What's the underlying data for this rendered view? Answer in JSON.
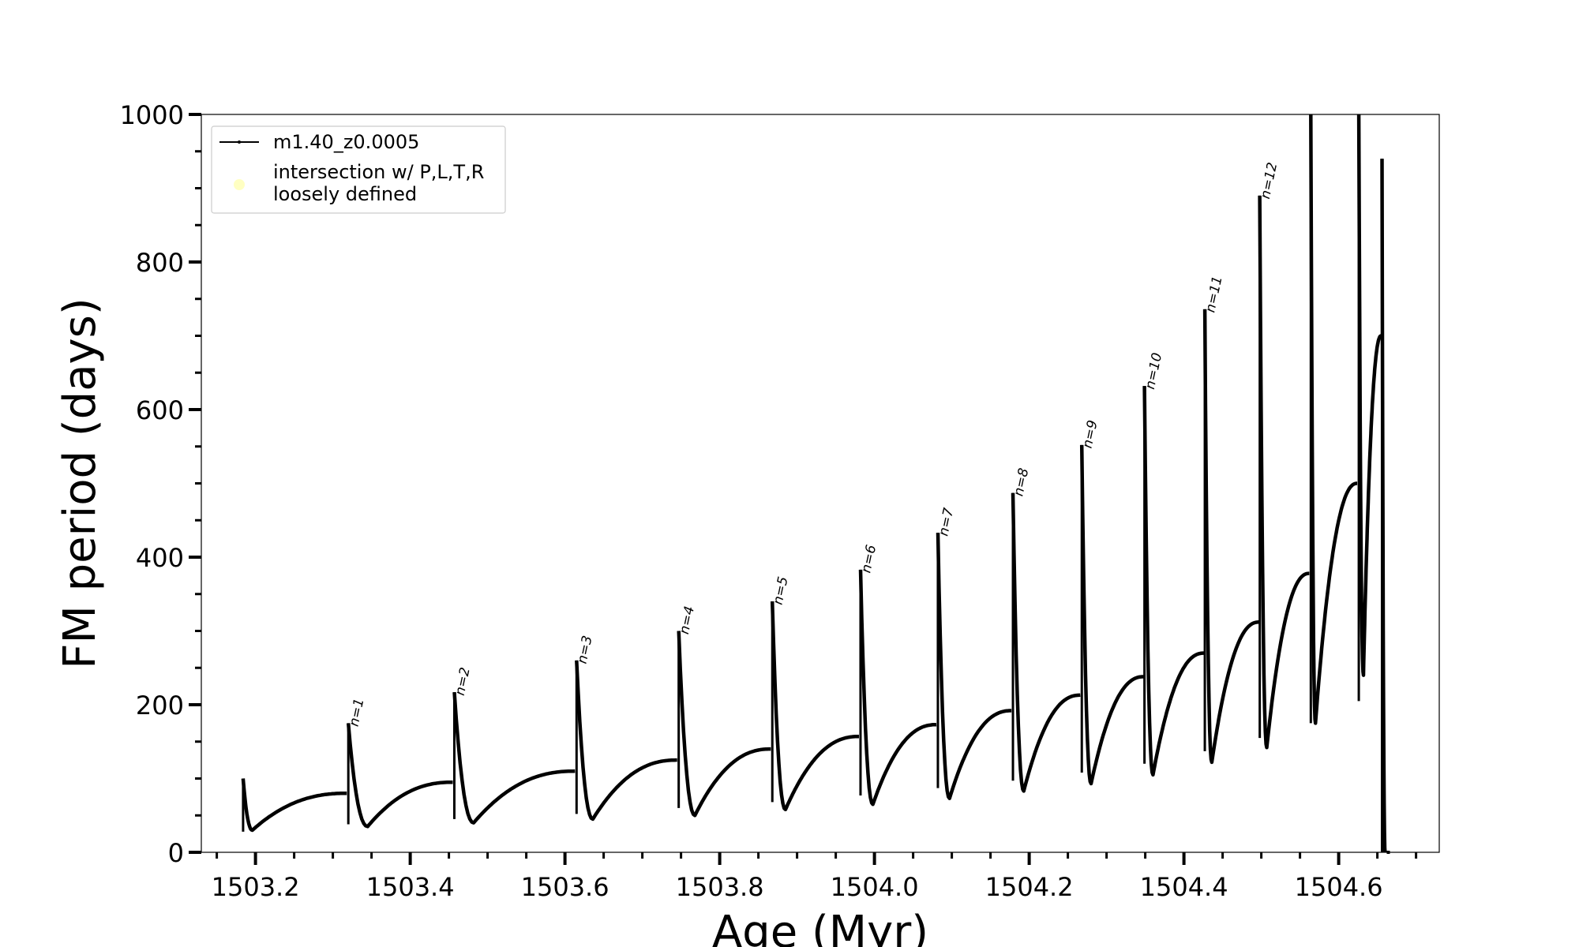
{
  "chart_data": {
    "type": "line",
    "xlabel": "Age (Myr)",
    "ylabel": "FM period (days)",
    "xlim": [
      1503.13,
      1504.73
    ],
    "ylim": [
      0,
      1000
    ],
    "x_ticks": [
      1503.2,
      1503.4,
      1503.6,
      1503.8,
      1504.0,
      1504.2,
      1504.4,
      1504.6
    ],
    "x_tick_labels": [
      "1503.2",
      "1503.4",
      "1503.6",
      "1503.8",
      "1504.0",
      "1504.2",
      "1504.4",
      "1504.6"
    ],
    "y_ticks": [
      0,
      200,
      400,
      600,
      800,
      1000
    ],
    "y_tick_labels": [
      "0",
      "200",
      "400",
      "600",
      "800",
      "1000"
    ],
    "grid": false,
    "legend_position": "top-left",
    "legend": [
      {
        "label": "m1.40_z0.0005",
        "marker": "line-with-dots",
        "color": "#000000"
      },
      {
        "label": "intersection w/ P,L,T,R",
        "label_line2": "loosely defined",
        "marker": "circle",
        "color": "#ffffb3"
      }
    ],
    "series": [
      {
        "name": "m1.40_z0.0005",
        "color": "#000000",
        "cycles": [
          {
            "start": 1503.184,
            "start_value": 100,
            "spike_low": 28,
            "trough_x": 1503.196,
            "trough": 30,
            "end": 1503.318,
            "end_value": 80
          },
          {
            "start": 1503.32,
            "peak": 175,
            "spike_low": 38,
            "trough_x": 1503.345,
            "trough": 35,
            "end": 1503.455,
            "end_value": 95
          },
          {
            "start": 1503.457,
            "peak": 217,
            "spike_low": 45,
            "trough_x": 1503.482,
            "trough": 40,
            "end": 1503.613,
            "end_value": 110
          },
          {
            "start": 1503.615,
            "peak": 260,
            "spike_low": 52,
            "trough_x": 1503.636,
            "trough": 45,
            "end": 1503.745,
            "end_value": 125
          },
          {
            "start": 1503.747,
            "peak": 300,
            "spike_low": 60,
            "trough_x": 1503.768,
            "trough": 50,
            "end": 1503.866,
            "end_value": 140
          },
          {
            "start": 1503.868,
            "peak": 340,
            "spike_low": 68,
            "trough_x": 1503.885,
            "trough": 58,
            "end": 1503.98,
            "end_value": 157
          },
          {
            "start": 1503.982,
            "peak": 383,
            "spike_low": 77,
            "trough_x": 1503.998,
            "trough": 65,
            "end": 1504.08,
            "end_value": 173
          },
          {
            "start": 1504.082,
            "peak": 433,
            "spike_low": 87,
            "trough_x": 1504.097,
            "trough": 73,
            "end": 1504.177,
            "end_value": 192
          },
          {
            "start": 1504.179,
            "peak": 487,
            "spike_low": 97,
            "trough_x": 1504.193,
            "trough": 83,
            "end": 1504.266,
            "end_value": 213
          },
          {
            "start": 1504.268,
            "peak": 552,
            "spike_low": 108,
            "trough_x": 1504.28,
            "trough": 93,
            "end": 1504.348,
            "end_value": 238
          },
          {
            "start": 1504.349,
            "peak": 632,
            "spike_low": 120,
            "trough_x": 1504.36,
            "trough": 105,
            "end": 1504.426,
            "end_value": 270
          },
          {
            "start": 1504.427,
            "peak": 736,
            "spike_low": 137,
            "trough_x": 1504.436,
            "trough": 122,
            "end": 1504.497,
            "end_value": 312
          },
          {
            "start": 1504.498,
            "peak": 890,
            "spike_low": 155,
            "trough_x": 1504.507,
            "trough": 142,
            "end": 1504.562,
            "end_value": 378
          },
          {
            "start": 1504.564,
            "peak": 1000,
            "spike_low": 175,
            "trough_x": 1504.57,
            "trough": 175,
            "end": 1504.624,
            "end_value": 500
          },
          {
            "start": 1504.626,
            "peak": 1000,
            "spike_low": 205,
            "trough_x": 1504.632,
            "trough": 240,
            "end": 1504.655,
            "end_value": 700
          },
          {
            "start": 1504.656,
            "peak": 940,
            "spike_low": 0,
            "trough_x": 1504.66,
            "trough": 0,
            "end": 1504.66,
            "end_value": 0
          }
        ]
      }
    ],
    "annotations": [
      {
        "text": "n=1",
        "x": 1503.32,
        "y": 175
      },
      {
        "text": "n=2",
        "x": 1503.457,
        "y": 217
      },
      {
        "text": "n=3",
        "x": 1503.615,
        "y": 260
      },
      {
        "text": "n=4",
        "x": 1503.747,
        "y": 300
      },
      {
        "text": "n=5",
        "x": 1503.868,
        "y": 340
      },
      {
        "text": "n=6",
        "x": 1503.982,
        "y": 383
      },
      {
        "text": "n=7",
        "x": 1504.082,
        "y": 433
      },
      {
        "text": "n=8",
        "x": 1504.179,
        "y": 487
      },
      {
        "text": "n=9",
        "x": 1504.268,
        "y": 552
      },
      {
        "text": "n=10",
        "x": 1504.349,
        "y": 632
      },
      {
        "text": "n=11",
        "x": 1504.427,
        "y": 736
      },
      {
        "text": "n=12",
        "x": 1504.498,
        "y": 890
      }
    ]
  }
}
